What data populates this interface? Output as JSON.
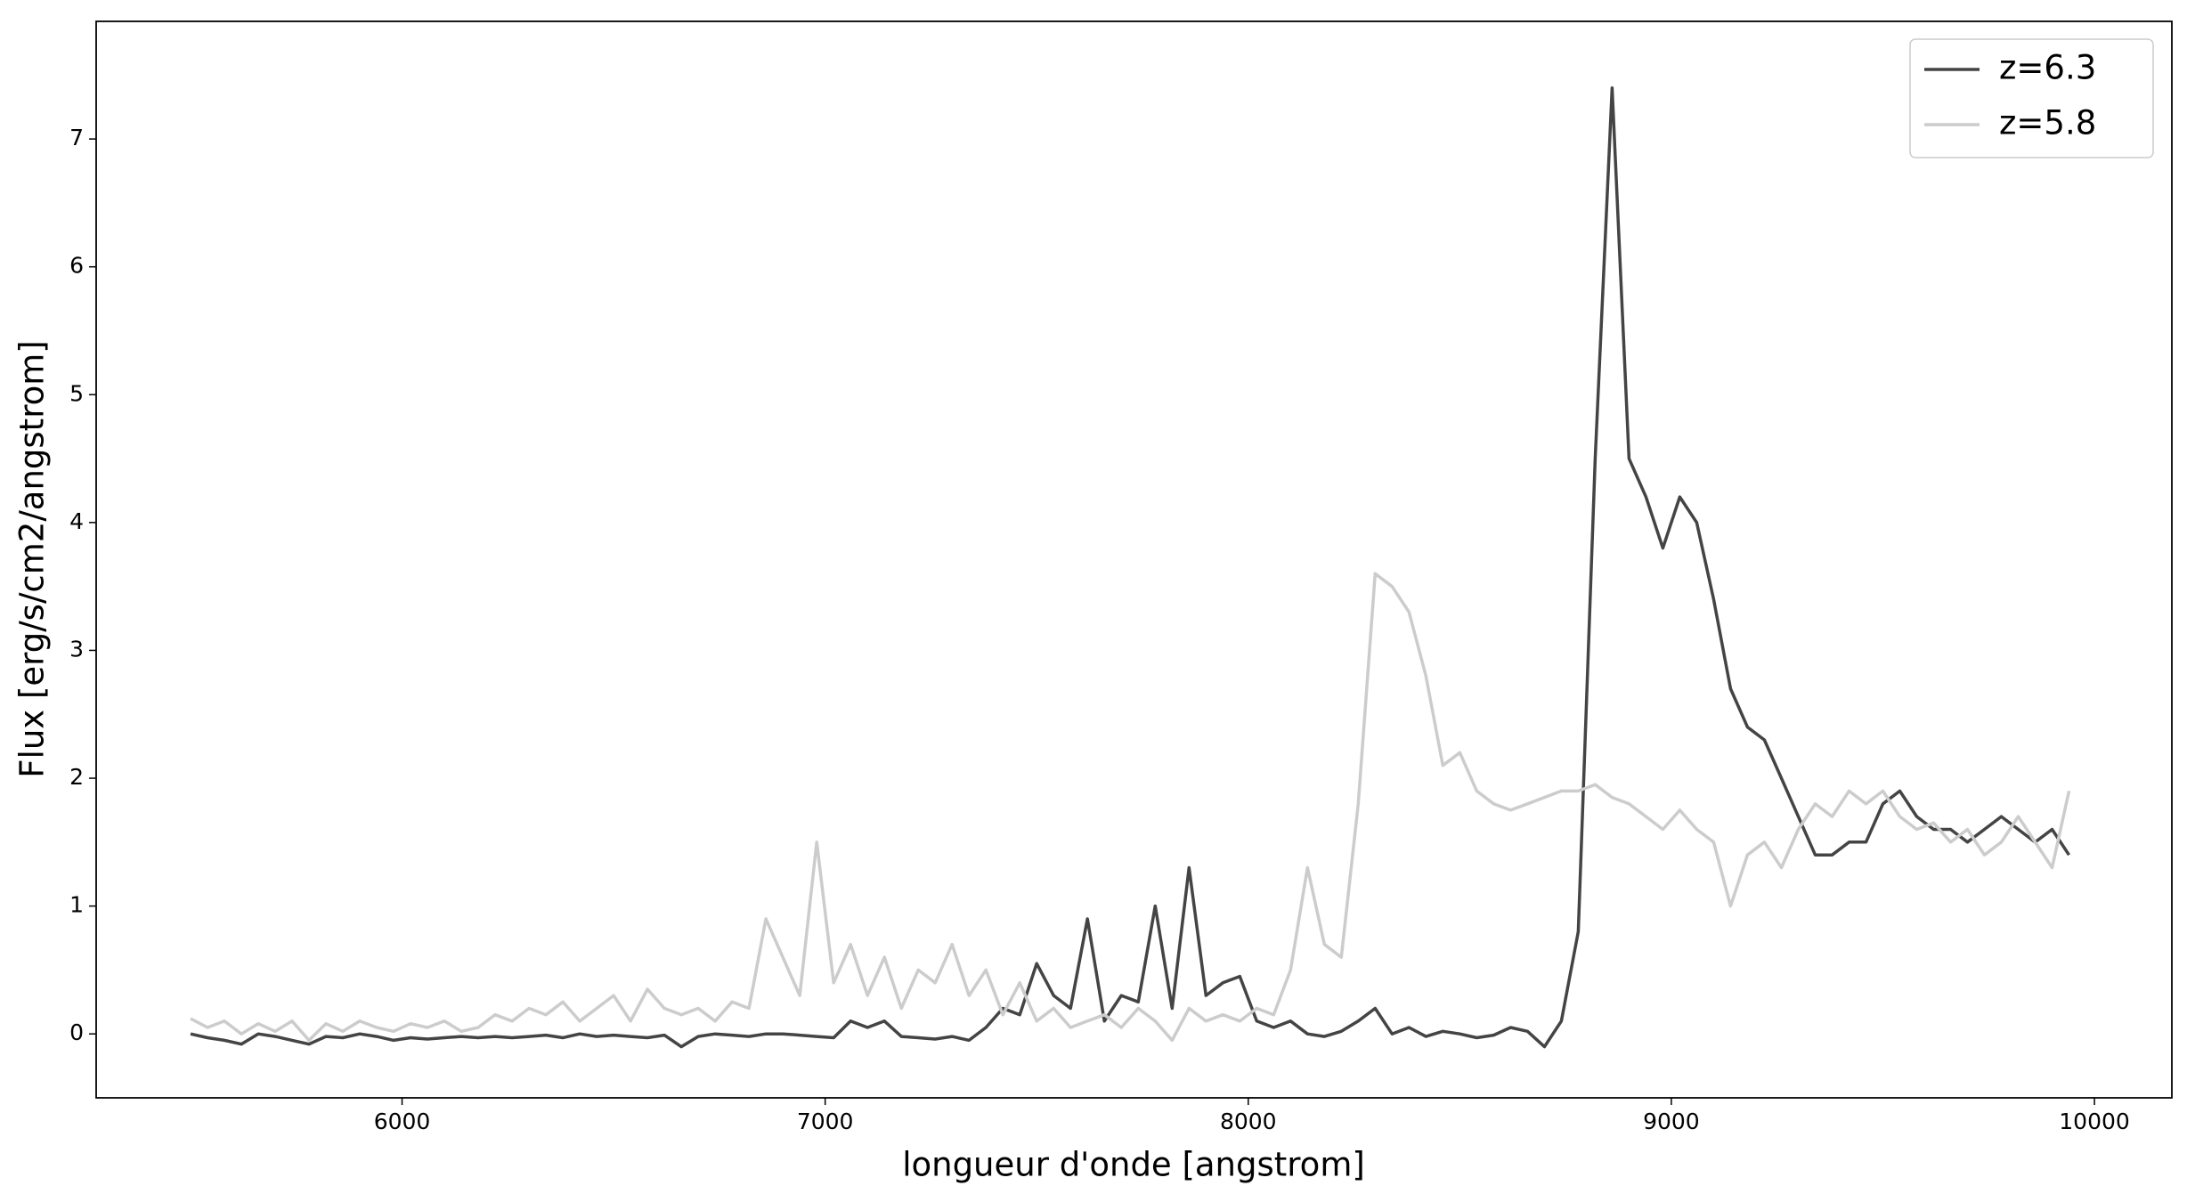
{
  "chart_data": {
    "type": "line",
    "xlabel": "longueur d'onde [angstrom]",
    "ylabel": "Flux [erg/s/cm2/angstrom]",
    "x": [
      5500,
      5540,
      5580,
      5620,
      5660,
      5700,
      5740,
      5780,
      5820,
      5860,
      5900,
      5940,
      5980,
      6020,
      6060,
      6100,
      6140,
      6180,
      6220,
      6260,
      6300,
      6340,
      6380,
      6420,
      6460,
      6500,
      6540,
      6580,
      6620,
      6660,
      6700,
      6740,
      6780,
      6820,
      6860,
      6900,
      6940,
      6980,
      7020,
      7060,
      7100,
      7140,
      7180,
      7220,
      7260,
      7300,
      7340,
      7380,
      7420,
      7460,
      7500,
      7540,
      7580,
      7620,
      7660,
      7700,
      7740,
      7780,
      7820,
      7860,
      7900,
      7940,
      7980,
      8020,
      8060,
      8100,
      8140,
      8180,
      8220,
      8260,
      8300,
      8340,
      8380,
      8420,
      8460,
      8500,
      8540,
      8580,
      8620,
      8660,
      8700,
      8740,
      8780,
      8820,
      8860,
      8900,
      8940,
      8980,
      9020,
      9060,
      9100,
      9140,
      9180,
      9220,
      9260,
      9300,
      9340,
      9380,
      9420,
      9460,
      9500,
      9540,
      9580,
      9620,
      9660,
      9700,
      9740,
      9780,
      9820,
      9860,
      9900,
      9940
    ],
    "series": [
      {
        "name": "z=6.3",
        "color": "#444444",
        "values": [
          0,
          -0.03,
          -0.05,
          -0.08,
          0,
          -0.02,
          -0.05,
          -0.08,
          -0.02,
          -0.03,
          0,
          -0.02,
          -0.05,
          -0.03,
          -0.04,
          -0.03,
          -0.02,
          -0.03,
          -0.02,
          -0.03,
          -0.02,
          -0.01,
          -0.03,
          0,
          -0.02,
          -0.01,
          -0.02,
          -0.03,
          -0.01,
          -0.1,
          -0.02,
          0,
          -0.01,
          -0.02,
          0,
          0,
          -0.01,
          -0.02,
          -0.03,
          0.1,
          0.05,
          0.1,
          -0.02,
          -0.03,
          -0.04,
          -0.02,
          -0.05,
          0.05,
          0.2,
          0.15,
          0.55,
          0.3,
          0.2,
          0.9,
          0.1,
          0.3,
          0.25,
          1.0,
          0.2,
          1.3,
          0.3,
          0.4,
          0.45,
          0.1,
          0.05,
          0.1,
          0,
          -0.02,
          0.02,
          0.1,
          0.2,
          0,
          0.05,
          -0.02,
          0.02,
          0,
          -0.03,
          -0.01,
          0.05,
          0.02,
          -0.1,
          0.1,
          0.8,
          4.5,
          7.4,
          4.5,
          4.2,
          3.8,
          4.2,
          4.0,
          3.4,
          2.7,
          2.4,
          2.3,
          2.0,
          1.7,
          1.4,
          1.4,
          1.5,
          1.5,
          1.8,
          1.9,
          1.7,
          1.6,
          1.6,
          1.5,
          1.6,
          1.7,
          1.6,
          1.5,
          1.6,
          1.4
        ]
      },
      {
        "name": "z=5.8",
        "color": "#cccccc",
        "values": [
          0.12,
          0.05,
          0.1,
          0,
          0.08,
          0.02,
          0.1,
          -0.05,
          0.08,
          0.02,
          0.1,
          0.05,
          0.02,
          0.08,
          0.05,
          0.1,
          0.02,
          0.05,
          0.15,
          0.1,
          0.2,
          0.15,
          0.25,
          0.1,
          0.2,
          0.3,
          0.1,
          0.35,
          0.2,
          0.15,
          0.2,
          0.1,
          0.25,
          0.2,
          0.9,
          0.6,
          0.3,
          1.5,
          0.4,
          0.7,
          0.3,
          0.6,
          0.2,
          0.5,
          0.4,
          0.7,
          0.3,
          0.5,
          0.15,
          0.4,
          0.1,
          0.2,
          0.05,
          0.1,
          0.15,
          0.05,
          0.2,
          0.1,
          -0.05,
          0.2,
          0.1,
          0.15,
          0.1,
          0.2,
          0.15,
          0.5,
          1.3,
          0.7,
          0.6,
          1.8,
          3.6,
          3.5,
          3.3,
          2.8,
          2.1,
          2.2,
          1.9,
          1.8,
          1.75,
          1.8,
          1.85,
          1.9,
          1.9,
          1.95,
          1.85,
          1.8,
          1.7,
          1.6,
          1.75,
          1.6,
          1.5,
          1.0,
          1.4,
          1.5,
          1.3,
          1.6,
          1.8,
          1.7,
          1.9,
          1.8,
          1.9,
          1.7,
          1.6,
          1.65,
          1.5,
          1.6,
          1.4,
          1.5,
          1.7,
          1.5,
          1.3,
          1.9
        ]
      }
    ],
    "xlim": [
      5277,
      10183
    ],
    "ylim": [
      -0.5,
      7.92
    ],
    "xticks": [
      6000,
      7000,
      8000,
      9000,
      10000
    ],
    "yticks": [
      0,
      1,
      2,
      3,
      4,
      5,
      6,
      7
    ],
    "legend": "upper right"
  }
}
